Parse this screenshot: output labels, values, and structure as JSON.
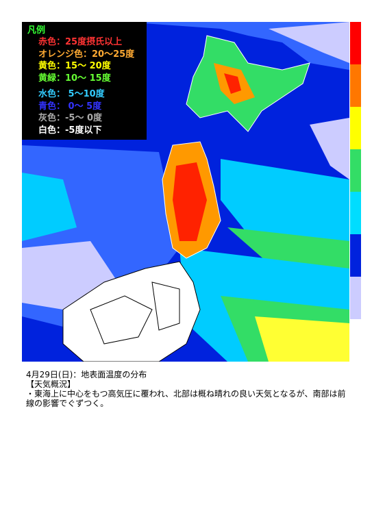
{
  "legend": {
    "title": "凡例",
    "entries": [
      {
        "label": "赤色：25度摂氏以上",
        "color": "#ff3333"
      },
      {
        "label": "オレンジ色：20〜25度",
        "color": "#ffaa33"
      },
      {
        "label": "黄色：15〜 20度",
        "color": "#ffff00"
      },
      {
        "label": "黄緑：10〜 15度",
        "color": "#66ff33"
      },
      {
        "label": "水色： 5〜10度",
        "color": "#33ccff"
      },
      {
        "label": "青色： 0〜 5度",
        "color": "#3333ff"
      },
      {
        "label": "灰色：-5〜 0度",
        "color": "#aaaaaa"
      },
      {
        "label": "白色：-5度以下",
        "color": "#ffffff"
      }
    ]
  },
  "colorbar": [
    "#ff0000",
    "#ff7700",
    "#ffff00",
    "#33dd66",
    "#00ddff",
    "#0022dd",
    "#ccccff"
  ],
  "caption": {
    "heading": "4月29日(日)：地表面温度の分布",
    "section": "【天気概況】",
    "text": "・東海上に中心をもつ高気圧に覆われ、北部は概ね晴れの良い天気となるが、南部は前線の影響でぐずつく。"
  }
}
